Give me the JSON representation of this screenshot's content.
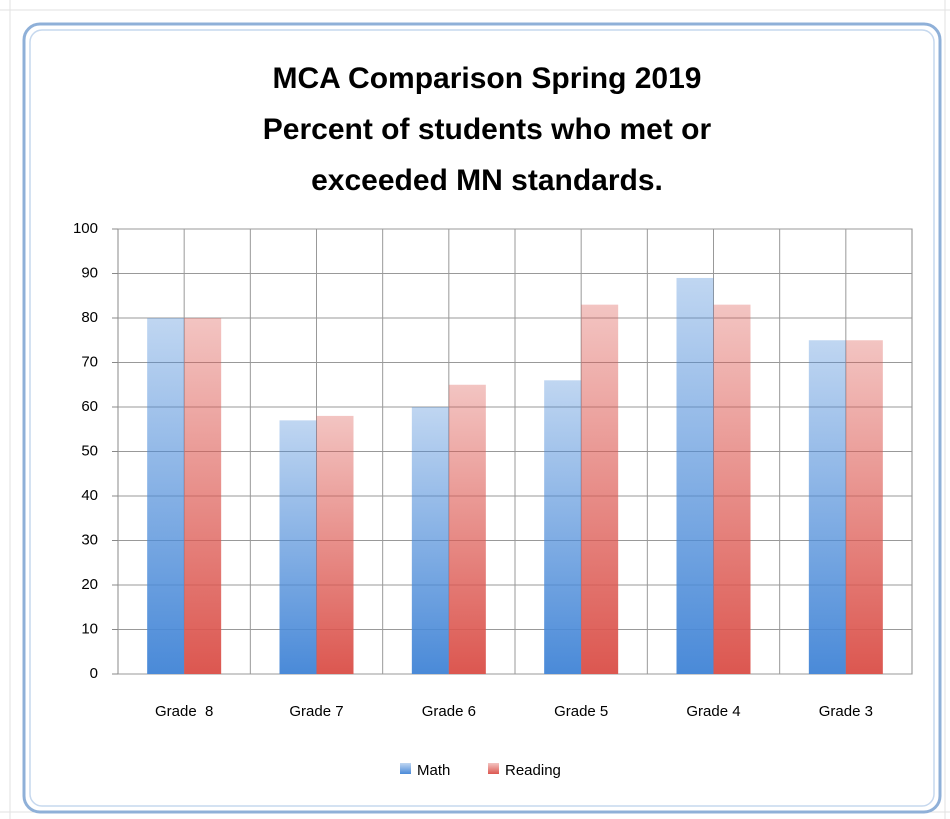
{
  "chart_data": {
    "type": "bar",
    "title": [
      "MCA Comparison Spring 2019",
      "Percent of students who met or",
      "exceeded MN standards."
    ],
    "categories": [
      "Grade  8",
      "Grade 7",
      "Grade 6",
      "Grade 5",
      "Grade 4",
      "Grade 3"
    ],
    "series": [
      {
        "name": "Math",
        "color": "#4a8ad8",
        "values": [
          80,
          57,
          60,
          66,
          89,
          75
        ]
      },
      {
        "name": "Reading",
        "color": "#dc5750",
        "values": [
          80,
          58,
          65,
          83,
          83,
          75
        ]
      }
    ],
    "ylim": [
      0,
      100
    ],
    "yticks": [
      0,
      10,
      20,
      30,
      40,
      50,
      60,
      70,
      80,
      90,
      100
    ],
    "grid": true,
    "legend": "bottom"
  }
}
